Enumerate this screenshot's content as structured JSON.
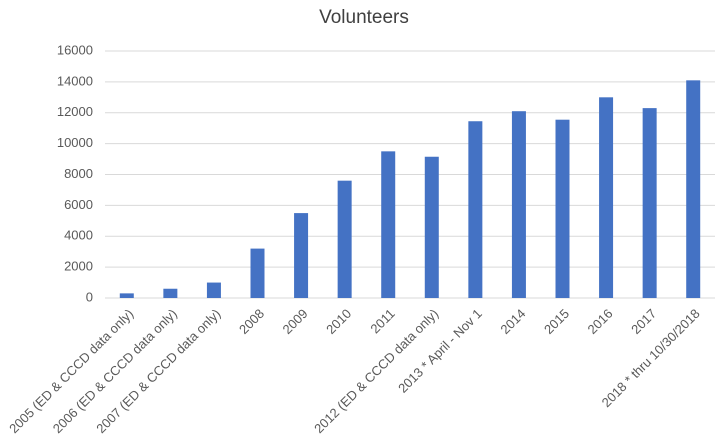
{
  "chart_data": {
    "type": "bar",
    "title": "Volunteers",
    "categories": [
      "2005 (ED & CCCD data only)",
      "2006 (ED & CCCD data only)",
      "2007 (ED & CCCD data only)",
      "2008",
      "2009",
      "2010",
      "2011",
      "2012 (ED & CCCD data only)",
      "2013 * April - Nov 1",
      "2014",
      "2015",
      "2016",
      "2017",
      "2018 * thru 10/30/2018"
    ],
    "values": [
      300,
      600,
      1000,
      3200,
      5500,
      7600,
      9500,
      9150,
      11450,
      12100,
      11550,
      13000,
      12300,
      14100
    ],
    "color": "#4472c4",
    "ylim": [
      0,
      16000
    ],
    "yticks": [
      0,
      2000,
      4000,
      6000,
      8000,
      10000,
      12000,
      14000,
      16000
    ],
    "grid": true
  }
}
